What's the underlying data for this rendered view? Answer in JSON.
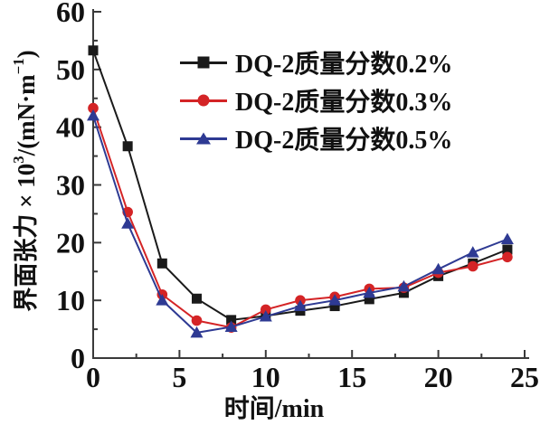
{
  "figure": {
    "background_color": "#ffffff",
    "axis_color": "#3a3a3a",
    "text_color": "#111111"
  },
  "chart_data": {
    "type": "line",
    "title": "",
    "xlabel": "时间/min",
    "ylabel": "界面张力 × 10³/(mN·m⁻¹)",
    "ylabel_parts": [
      {
        "text": "界面张力 × 10"
      },
      {
        "text": "3",
        "sup": true
      },
      {
        "text": "/(mN·m"
      },
      {
        "text": "−1",
        "sup": true
      },
      {
        "text": ")"
      }
    ],
    "xlim": [
      0,
      25
    ],
    "ylim": [
      0,
      60
    ],
    "x_major_ticks": [
      0,
      5,
      10,
      15,
      20,
      25
    ],
    "x_minor_tick_step": 2.5,
    "y_major_ticks": [
      0,
      10,
      20,
      30,
      40,
      50,
      60
    ],
    "y_minor_tick_step": 5,
    "grid": false,
    "legend_position": "upper center inside",
    "x": [
      0,
      2,
      4,
      6,
      8,
      10,
      12,
      14,
      16,
      18,
      20,
      22,
      24
    ],
    "series": [
      {
        "name": "DQ-2质量分数0.2%",
        "marker": "square",
        "color": "#1a1a1a",
        "values": [
          53.3,
          36.7,
          16.4,
          10.3,
          6.6,
          7.3,
          8.2,
          9.0,
          10.2,
          11.3,
          14.2,
          16.4,
          18.8
        ]
      },
      {
        "name": "DQ-2质量分数0.3%",
        "marker": "circle",
        "color": "#d42426",
        "values": [
          43.3,
          25.3,
          11.0,
          6.5,
          5.3,
          8.4,
          10.0,
          10.6,
          12.0,
          12.2,
          14.8,
          15.9,
          17.5
        ]
      },
      {
        "name": "DQ-2质量分数0.5%",
        "marker": "triangle",
        "color": "#2e3a93",
        "values": [
          42.0,
          23.3,
          10.0,
          4.4,
          5.4,
          7.2,
          9.0,
          10.0,
          11.3,
          12.4,
          15.4,
          18.3,
          20.6
        ]
      }
    ]
  }
}
